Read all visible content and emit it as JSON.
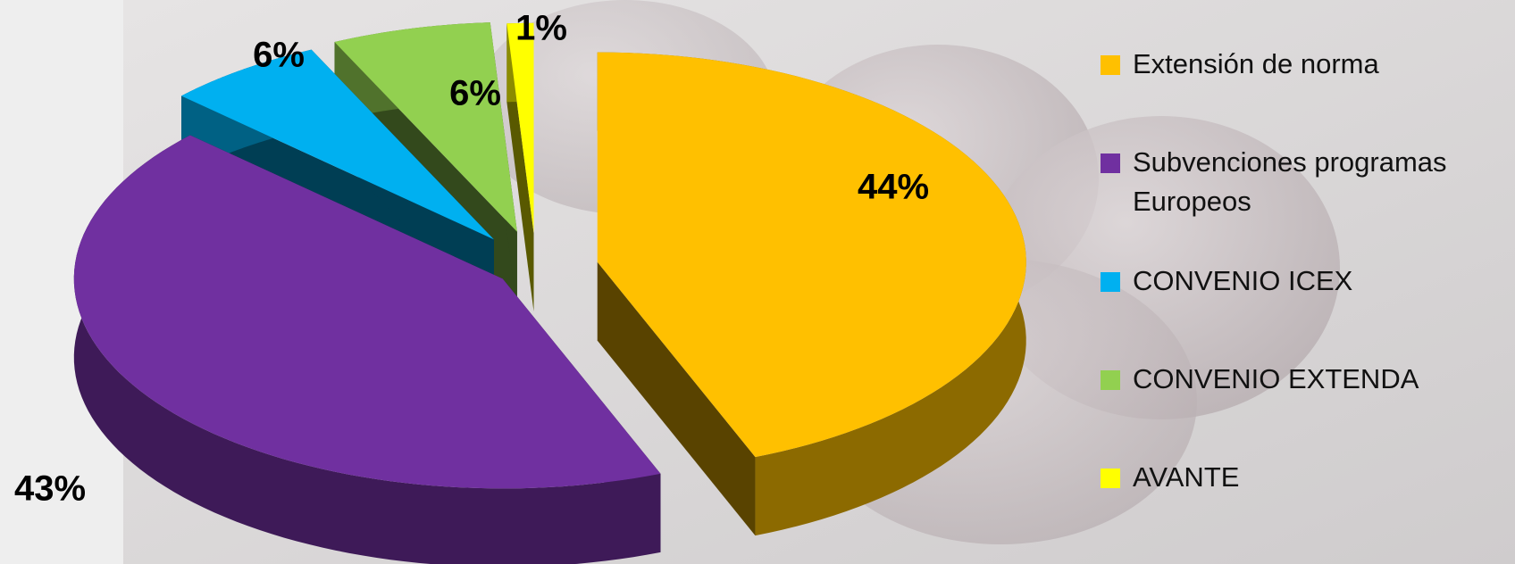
{
  "chart_data": {
    "type": "pie",
    "categories": [
      "Extensión de norma",
      "Subvenciones programas Europeos",
      "CONVENIO ICEX",
      "CONVENIO EXTENDA",
      "AVANTE"
    ],
    "values": [
      44,
      43,
      6,
      6,
      1
    ],
    "value_labels": [
      "44%",
      "43%",
      "6%",
      "6%",
      "1%"
    ],
    "colors": [
      "#ffc000",
      "#7030a0",
      "#00b0f0",
      "#92d050",
      "#ffff00"
    ]
  }
}
